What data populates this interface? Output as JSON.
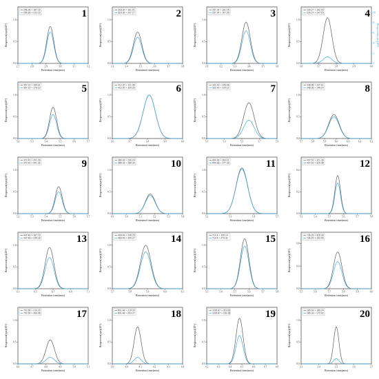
{
  "colors": {
    "grey": "#5a5a5a",
    "blue": "#3aa6e0",
    "right_axis": "#3aa6e0"
  },
  "common": {
    "xlabel": "Retention time(min)",
    "ylabel": "Responses(cps)(10⁶)",
    "ylabel_right": "Responses(cps)(10⁴)"
  },
  "chart_data": [
    {
      "id": "1",
      "type": "line",
      "legend": [
        "296.28 > 167.15",
        "296.28 > 223.10"
      ],
      "xlim": [
        2.7,
        3.2
      ],
      "xticks": [
        "2.7",
        "2.8",
        "2.9",
        "3.0",
        "3.1",
        "3.2"
      ],
      "yticks": [
        "0.0",
        "0.5",
        "1.0"
      ],
      "ylim": [
        0,
        1.3
      ],
      "series": [
        {
          "name": "296.28 > 167.15",
          "peak_x": 2.93,
          "height": 0.85,
          "width": 0.025
        },
        {
          "name": "296.28 > 223.10",
          "peak_x": 2.93,
          "height": 0.72,
          "width": 0.025
        }
      ]
    },
    {
      "id": "2",
      "type": "line",
      "legend": [
        "318.30 > 181.21",
        "318.30 > 237.17"
      ],
      "xlim": [
        3.3,
        3.8
      ],
      "xticks": [
        "3.3",
        "3.4",
        "3.5",
        "3.6",
        "3.7",
        "3.8"
      ],
      "yticks": [
        "0.0",
        "0.5",
        "1.0"
      ],
      "ylim": [
        0,
        1.3
      ],
      "series": [
        {
          "name": "318.30 > 181.21",
          "peak_x": 3.48,
          "height": 0.72,
          "width": 0.03
        },
        {
          "name": "318.30 > 237.17",
          "peak_x": 3.48,
          "height": 0.6,
          "width": 0.03
        }
      ]
    },
    {
      "id": "3",
      "type": "line",
      "legend": [
        "257.24 > 161.15",
        "257.24 > 107.05"
      ],
      "xlim": [
        3.1,
        3.6
      ],
      "xticks": [
        "3.1",
        "3.2",
        "3.3",
        "3.4",
        "3.5",
        "3.6"
      ],
      "yticks": [
        "0.0",
        "0.5",
        "1.0"
      ],
      "ylim": [
        0,
        1.3
      ],
      "series": [
        {
          "name": "257.24 > 161.15",
          "peak_x": 3.38,
          "height": 0.95,
          "width": 0.03
        },
        {
          "name": "257.24 > 107.05",
          "peak_x": 3.38,
          "height": 0.75,
          "width": 0.03
        }
      ]
    },
    {
      "id": "4",
      "type": "line",
      "legend": [
        "226.27 > 142.16",
        "226.27 > 147.15"
      ],
      "xlim": [
        3.6,
        4.0
      ],
      "xticks": [
        "3.6",
        "3.7",
        "3.8",
        "3.9",
        "4.0"
      ],
      "yticks": [
        "0.0",
        "0.5",
        "1.0"
      ],
      "ylim": [
        0,
        1.3
      ],
      "right_axis": true,
      "right_ticks": [
        "0",
        "2",
        "4",
        "6",
        "8",
        "10"
      ],
      "series": [
        {
          "name": "226.27 > 142.16",
          "peak_x": 3.75,
          "height": 1.05,
          "width": 0.025
        },
        {
          "name": "226.27 > 147.15",
          "peak_x": 3.75,
          "height": 0.15,
          "width": 0.025
        }
      ]
    },
    {
      "id": "5",
      "type": "line",
      "legend": [
        "357.22 > 194.11",
        "357.22 > 179.12"
      ],
      "xlim": [
        5.2,
        5.7
      ],
      "xticks": [
        "5.2",
        "5.3",
        "5.4",
        "5.5",
        "5.6",
        "5.7"
      ],
      "yticks": [
        "0.0",
        "0.5",
        "1.0"
      ],
      "ylim": [
        0,
        1.3
      ],
      "series": [
        {
          "name": "357.22 > 194.11",
          "peak_x": 5.45,
          "height": 0.72,
          "width": 0.025
        },
        {
          "name": "357.22 > 179.12",
          "peak_x": 5.45,
          "height": 0.55,
          "width": 0.025
        }
      ]
    },
    {
      "id": "6",
      "type": "line",
      "legend": [
        "412.20 > 121.06",
        "412.20 > 329.25"
      ],
      "xlim": [
        3.6,
        4.0
      ],
      "xticks": [
        "3.6",
        "3.7",
        "3.8",
        "3.9",
        "4.0"
      ],
      "yticks": [
        "0.0",
        "0.5",
        "1.0"
      ],
      "ylim": [
        0,
        1.3
      ],
      "series": [
        {
          "name": "412.20 > 121.06",
          "peak_x": 3.81,
          "height": 1.0,
          "width": 0.035
        },
        {
          "name": "412.20 > 329.25",
          "peak_x": 3.81,
          "height": 1.0,
          "width": 0.035
        }
      ]
    },
    {
      "id": "7",
      "type": "line",
      "legend": [
        "332.43 > 143.08",
        "332.43 > 229.12"
      ],
      "xlim": [
        5.1,
        5.9
      ],
      "xticks": [
        "5.1",
        "5.3",
        "5.5",
        "5.7",
        "5.9"
      ],
      "yticks": [
        "0.0",
        "0.5",
        "1.0"
      ],
      "ylim": [
        0,
        1.3
      ],
      "series": [
        {
          "name": "332.43 > 143.08",
          "peak_x": 5.58,
          "height": 0.82,
          "width": 0.06
        },
        {
          "name": "332.43 > 229.12",
          "peak_x": 5.58,
          "height": 0.42,
          "width": 0.06
        }
      ]
    },
    {
      "id": "8",
      "type": "line",
      "legend": [
        "348.36 > 107.11",
        "348.36 > 149.14"
      ],
      "xlim": [
        5.7,
        6.3
      ],
      "xticks": [
        "5.7",
        "5.8",
        "5.9",
        "6.0",
        "6.1",
        "6.2",
        "6.3"
      ],
      "yticks": [
        "0.0",
        "0.5",
        "1.0"
      ],
      "ylim": [
        0,
        1.3
      ],
      "series": [
        {
          "name": "348.36 > 107.11",
          "peak_x": 5.98,
          "height": 0.55,
          "width": 0.045
        },
        {
          "name": "348.36 > 149.14",
          "peak_x": 5.98,
          "height": 0.5,
          "width": 0.045
        }
      ]
    },
    {
      "id": "9",
      "type": "line",
      "legend": [
        "370.42 > 201.26",
        "370.42 > 441.32"
      ],
      "xlim": [
        5.2,
        5.7
      ],
      "xticks": [
        "5.2",
        "5.3",
        "5.4",
        "5.5",
        "5.6",
        "5.7"
      ],
      "yticks": [
        "0.0",
        "0.5",
        "1.0"
      ],
      "ylim": [
        0,
        1.3
      ],
      "series": [
        {
          "name": "370.42 > 201.26",
          "peak_x": 5.49,
          "height": 0.62,
          "width": 0.025
        },
        {
          "name": "370.42 > 441.32",
          "peak_x": 5.49,
          "height": 0.5,
          "width": 0.025
        }
      ]
    },
    {
      "id": "10",
      "type": "line",
      "legend": [
        "389.33 > 230.23",
        "389.33 > 289.30"
      ],
      "xlim": [
        4.9,
        5.4
      ],
      "xticks": [
        "4.9",
        "5.0",
        "5.1",
        "5.2",
        "5.3",
        "5.4"
      ],
      "yticks": [
        "0.0",
        "0.5",
        "1.0"
      ],
      "ylim": [
        0,
        1.3
      ],
      "series": [
        {
          "name": "389.33 > 230.23",
          "peak_x": 5.17,
          "height": 0.45,
          "width": 0.035
        },
        {
          "name": "389.33 > 289.30",
          "peak_x": 5.17,
          "height": 0.42,
          "width": 0.035
        }
      ]
    },
    {
      "id": "11",
      "type": "line",
      "legend": [
        "404.36 > 263.11",
        "404.36 > 177.26"
      ],
      "xlim": [
        5.2,
        5.5
      ],
      "xticks": [
        "5.2",
        "5.3",
        "5.4",
        "5.5"
      ],
      "yticks": [
        "0.0",
        "0.5",
        "1.0"
      ],
      "ylim": [
        0,
        1.3
      ],
      "series": [
        {
          "name": "404.36 > 263.11",
          "peak_x": 5.35,
          "height": 1.05,
          "width": 0.025
        },
        {
          "name": "404.36 > 177.26",
          "peak_x": 5.35,
          "height": 1.02,
          "width": 0.025
        }
      ]
    },
    {
      "id": "12",
      "type": "line",
      "legend": [
        "437.51 > 121.39",
        "437.51 > 325.45"
      ],
      "xlim": [
        5.3,
        5.8
      ],
      "xticks": [
        "5.3",
        "5.4",
        "5.5",
        "5.6",
        "5.7",
        "5.8"
      ],
      "yticks": [
        "0.0",
        "0.2",
        "0.4"
      ],
      "ylim": [
        0,
        0.52
      ],
      "series": [
        {
          "name": "437.51 > 121.39",
          "peak_x": 5.56,
          "height": 0.35,
          "width": 0.02
        },
        {
          "name": "437.51 > 325.45",
          "peak_x": 5.56,
          "height": 0.28,
          "width": 0.02
        }
      ]
    },
    {
      "id": "13",
      "type": "line",
      "legend": [
        "447.46 > 187.19",
        "447.46 > 235.18"
      ],
      "xlim": [
        6.3,
        7.1
      ],
      "xticks": [
        "6.3",
        "6.5",
        "6.7",
        "6.9",
        "7.1"
      ],
      "yticks": [
        "0.0",
        "0.5",
        "1.0"
      ],
      "ylim": [
        0,
        1.3
      ],
      "series": [
        {
          "name": "447.46 > 187.19",
          "peak_x": 6.66,
          "height": 0.95,
          "width": 0.05
        },
        {
          "name": "447.46 > 235.18",
          "peak_x": 6.66,
          "height": 0.72,
          "width": 0.05
        }
      ]
    },
    {
      "id": "14",
      "type": "line",
      "legend": [
        "469.49 > 249.25",
        "469.49 > 309.27"
      ],
      "xlim": [
        5.7,
        6.1
      ],
      "xticks": [
        "5.7",
        "5.8",
        "5.9",
        "6.0",
        "6.1"
      ],
      "yticks": [
        "0.0",
        "0.5",
        "1.0"
      ],
      "ylim": [
        0,
        1.3
      ],
      "series": [
        {
          "name": "469.49 > 249.25",
          "peak_x": 5.89,
          "height": 1.0,
          "width": 0.03
        },
        {
          "name": "469.49 > 309.27",
          "peak_x": 5.89,
          "height": 0.85,
          "width": 0.03
        }
      ]
    },
    {
      "id": "15",
      "type": "line",
      "legend": [
        "714.4 > 159.14",
        "714.4 > 473.32"
      ],
      "xlim": [
        5.3,
        5.8
      ],
      "xticks": [
        "5.3",
        "5.4",
        "5.5",
        "5.6",
        "5.7",
        "5.8"
      ],
      "yticks": [
        "0.0",
        "0.5",
        "1.0"
      ],
      "ylim": [
        0,
        1.3
      ],
      "series": [
        {
          "name": "714.4 > 159.14",
          "peak_x": 5.57,
          "height": 1.15,
          "width": 0.03
        },
        {
          "name": "714.4 > 473.32",
          "peak_x": 5.57,
          "height": 0.98,
          "width": 0.03
        }
      ]
    },
    {
      "id": "16",
      "type": "line",
      "legend": [
        "736.29 > 428.39",
        "736.29 > 163.06"
      ],
      "xlim": [
        5.5,
        6.0
      ],
      "xticks": [
        "5.5",
        "5.6",
        "5.7",
        "5.8",
        "5.9",
        "6.0"
      ],
      "yticks": [
        "0.0",
        "0.4",
        "0.8"
      ],
      "ylim": [
        0,
        1.0
      ],
      "series": [
        {
          "name": "736.29 > 428.39",
          "peak_x": 5.76,
          "height": 0.65,
          "width": 0.03
        },
        {
          "name": "736.29 > 163.06",
          "peak_x": 5.76,
          "height": 0.48,
          "width": 0.03
        }
      ]
    },
    {
      "id": "17",
      "type": "line",
      "legend": [
        "792.69 > 219.20",
        "792.69 > 283.36"
      ],
      "xlim": [
        4.6,
        5.1
      ],
      "xticks": [
        "4.6",
        "4.7",
        "4.8",
        "4.9",
        "5.0",
        "5.1"
      ],
      "yticks": [
        "0.0",
        "0.5",
        "1.0"
      ],
      "ylim": [
        0,
        1.3
      ],
      "series": [
        {
          "name": "792.69 > 219.20",
          "peak_x": 4.83,
          "height": 0.55,
          "width": 0.03
        },
        {
          "name": "792.69 > 283.36",
          "peak_x": 4.83,
          "height": 0.15,
          "width": 0.03
        }
      ]
    },
    {
      "id": "18",
      "type": "line",
      "legend": [
        "801.48 > 219.29",
        "801.48 > 203.27"
      ],
      "xlim": [
        3.9,
        4.4
      ],
      "xticks": [
        "3.9",
        "4.0",
        "4.1",
        "4.2",
        "4.3",
        "4.4"
      ],
      "yticks": [
        "0.0",
        "0.5",
        "1.0"
      ],
      "ylim": [
        0,
        1.3
      ],
      "series": [
        {
          "name": "801.48 > 219.29",
          "peak_x": 4.08,
          "height": 0.85,
          "width": 0.025
        },
        {
          "name": "801.48 > 203.27",
          "peak_x": 4.08,
          "height": 0.15,
          "width": 0.025
        }
      ]
    },
    {
      "id": "19",
      "type": "line",
      "legend": [
        "1195.87 > 319.82",
        "1195.87 > 162.28"
      ],
      "xlim": [
        4.2,
        4.8
      ],
      "xticks": [
        "4.2",
        "4.3",
        "4.4",
        "4.5",
        "4.6",
        "4.7",
        "4.8"
      ],
      "yticks": [
        "0.0",
        "0.5",
        "1.0"
      ],
      "ylim": [
        0,
        1.3
      ],
      "series": [
        {
          "name": "1195.87 > 319.82",
          "peak_x": 4.48,
          "height": 1.05,
          "width": 0.03
        },
        {
          "name": "1195.87 > 162.28",
          "peak_x": 4.48,
          "height": 0.65,
          "width": 0.03
        }
      ]
    },
    {
      "id": "20",
      "type": "line",
      "legend": [
        "285.18 > 189.24",
        "285.18 > 172.02"
      ],
      "xlim": [
        3.3,
        3.7
      ],
      "xticks": [
        "3.3",
        "3.4",
        "3.5",
        "3.6",
        "3.7"
      ],
      "yticks": [
        "0.0",
        "0.5",
        "1.0"
      ],
      "ylim": [
        0,
        1.3
      ],
      "series": [
        {
          "name": "285.18 > 189.24",
          "peak_x": 3.5,
          "height": 0.85,
          "width": 0.015
        },
        {
          "name": "285.18 > 172.02",
          "peak_x": 3.5,
          "height": 0.12,
          "width": 0.015
        }
      ]
    }
  ]
}
